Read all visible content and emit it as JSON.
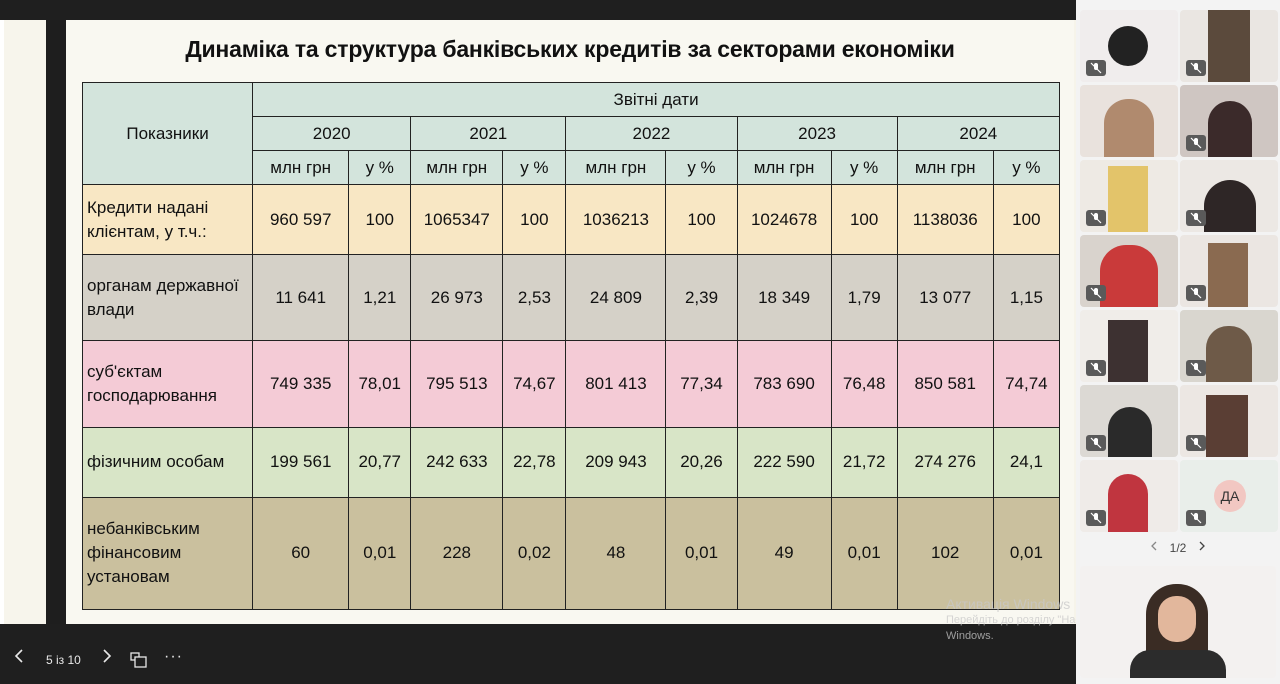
{
  "slide": {
    "title": "Динаміка та структура банківських кредитів за секторами економіки",
    "table": {
      "indicator_header": "Показники",
      "period_header": "Звітні дати",
      "years": [
        "2020",
        "2021",
        "2022",
        "2023",
        "2024"
      ],
      "sub_headers": {
        "amount": "млн грн",
        "percent": "у %"
      },
      "rows": [
        {
          "label": "Кредити надані клієнтам, у т.ч.:",
          "values": [
            "960 597",
            "100",
            "1065347",
            "100",
            "1036213",
            "100",
            "1024678",
            "100",
            "1138036",
            "100"
          ]
        },
        {
          "label": "органам державної влади",
          "values": [
            "11 641",
            "1,21",
            "26 973",
            "2,53",
            "24 809",
            "2,39",
            "18 349",
            "1,79",
            "13 077",
            "1,15"
          ]
        },
        {
          "label": "суб'єктам господарювання",
          "values": [
            "749 335",
            "78,01",
            "795 513",
            "74,67",
            "801 413",
            "77,34",
            "783 690",
            "76,48",
            "850 581",
            "74,74"
          ]
        },
        {
          "label": "фізичним особам",
          "values": [
            "199 561",
            "20,77",
            "242 633",
            "22,78",
            "209 943",
            "20,26",
            "222 590",
            "21,72",
            "274 276",
            "24,1"
          ]
        },
        {
          "label": "небанківським фінансовим установам",
          "values": [
            "60",
            "0,01",
            "228",
            "0,02",
            "48",
            "0,01",
            "49",
            "0,01",
            "102",
            "0,01"
          ]
        }
      ]
    }
  },
  "controls": {
    "page_indicator": "5 із 10",
    "more_label": "···"
  },
  "watermark": {
    "title": "Активація Windows",
    "text": "Перейдіть до розділу \"Настройки\", щоб активувати Windows."
  },
  "participants": {
    "pager_text": "1/2",
    "initials_tile": "ДА"
  },
  "icons": [
    "chevron-left-icon",
    "chevron-right-icon",
    "layout-icon",
    "more-icon",
    "mic-off-icon"
  ],
  "colors": {
    "header_green": "#d3e4dc",
    "row_total": "#f8e7c4",
    "row_government": "#d5d1c8",
    "row_business": "#f4cbd6",
    "row_individuals": "#d8e5c7",
    "row_nonbank": "#cac09e"
  }
}
